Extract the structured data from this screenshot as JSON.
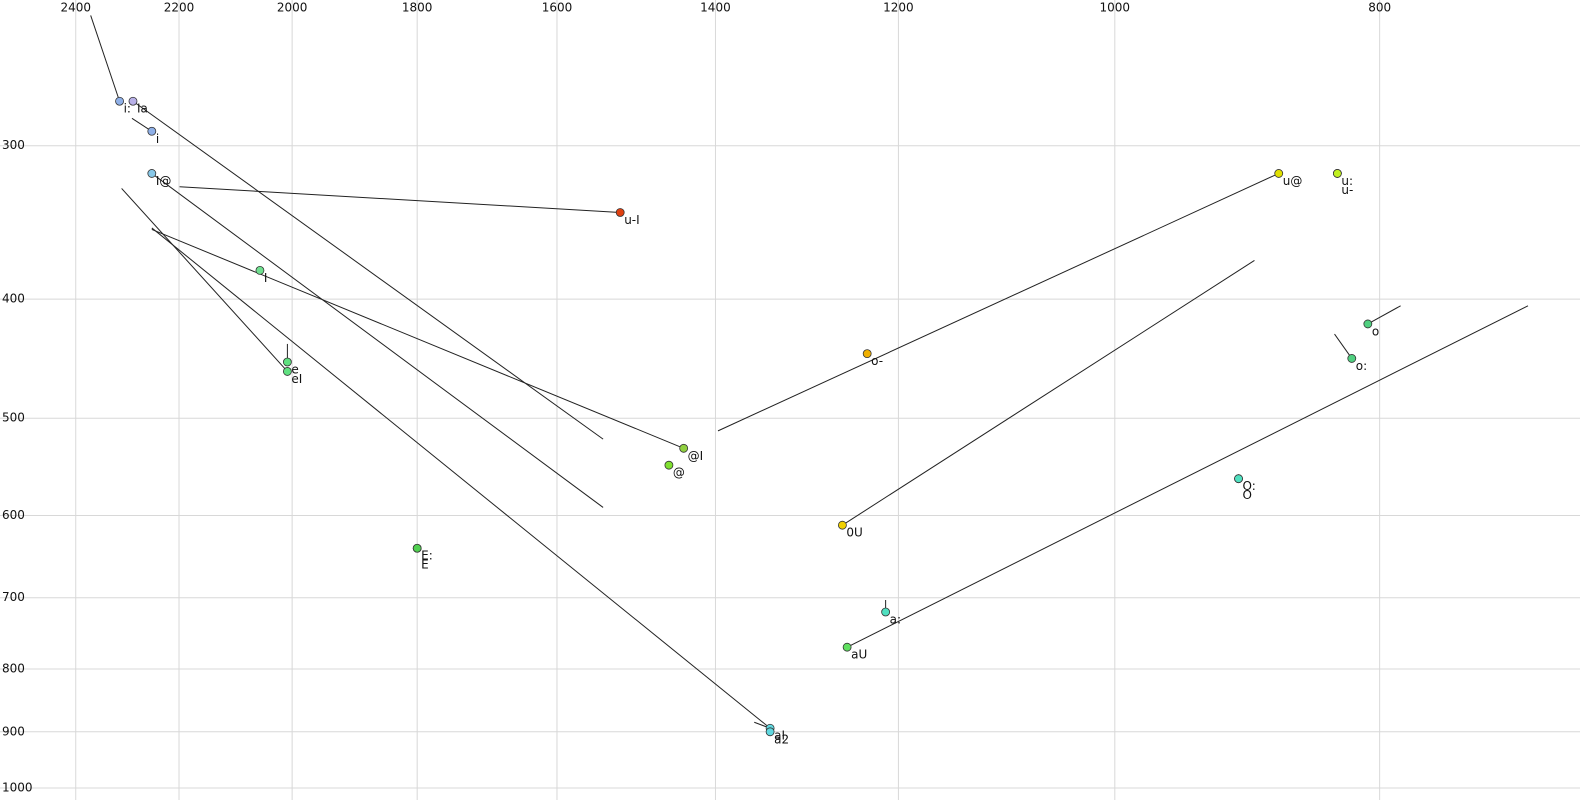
{
  "chart_data": {
    "type": "scatter",
    "log_x": true,
    "log_y": true,
    "x_reversed": true,
    "grid": true,
    "xlim": [
      2430,
      706
    ],
    "ylim": [
      247,
      1000
    ],
    "xticks": [
      2400,
      2200,
      2000,
      1800,
      1600,
      1400,
      1200,
      1000,
      800
    ],
    "yticks": [
      300,
      400,
      500,
      600,
      700,
      800,
      900,
      1000
    ],
    "points": [
      {
        "label": "i:",
        "color": "#8fb0e8",
        "x": 2313,
        "y": 276
      },
      {
        "label": "Ia",
        "color": "#b8b0e8",
        "x": 2287,
        "y": 276
      },
      {
        "label": "i",
        "color": "#8fb0e8",
        "x": 2251,
        "y": 292
      },
      {
        "label": "I@",
        "color": "#88c8e8",
        "x": 2251,
        "y": 316
      },
      {
        "label": "I",
        "color": "#70e090",
        "x": 2055,
        "y": 379
      },
      {
        "label": "e",
        "color": "#60e080",
        "x": 2008,
        "y": 450
      },
      {
        "label": "eI",
        "color": "#60e080",
        "x": 2008,
        "y": 458
      },
      {
        "label": "E:",
        "color": "#50d050",
        "x": 1800,
        "y": 638
      },
      {
        "label": "E",
        "color": "#50d050",
        "x": 1800,
        "y": 638
      },
      {
        "label": "u-I",
        "color": "#e04010",
        "x": 1517,
        "y": 340
      },
      {
        "label": "@I",
        "color": "#90d040",
        "x": 1438,
        "y": 529
      },
      {
        "label": "@",
        "color": "#80e030",
        "x": 1456,
        "y": 546
      },
      {
        "label": "o-",
        "color": "#f0b000",
        "x": 1232,
        "y": 443
      },
      {
        "label": "0U",
        "color": "#f0d000",
        "x": 1258,
        "y": 611
      },
      {
        "label": "aU",
        "color": "#60e060",
        "x": 1253,
        "y": 768
      },
      {
        "label": "a:",
        "color": "#50e0c0",
        "x": 1213,
        "y": 719
      },
      {
        "label": "aI",
        "color": "#60d8e0",
        "x": 1337,
        "y": 894
      },
      {
        "label": "a2",
        "color": "#60d8e0",
        "x": 1337,
        "y": 900
      },
      {
        "label": "u@",
        "color": "#e0e000",
        "x": 871,
        "y": 316
      },
      {
        "label": "u:",
        "color": "#c0f020",
        "x": 829,
        "y": 316
      },
      {
        "label": "u-",
        "color": "#c0f020",
        "x": 829,
        "y": 316
      },
      {
        "label": "o",
        "color": "#50d080",
        "x": 808,
        "y": 419
      },
      {
        "label": "o:",
        "color": "#50d080",
        "x": 819,
        "y": 447
      },
      {
        "label": "O:",
        "color": "#50e0c0",
        "x": 901,
        "y": 560
      },
      {
        "label": "O",
        "color": "#50e0c0",
        "x": 901,
        "y": 560
      }
    ],
    "lines": [
      {
        "x": [
          2370,
          2313
        ],
        "y": [
          235,
          276
        ]
      },
      {
        "x": [
          2287,
          1539
        ],
        "y": [
          276,
          520
        ]
      },
      {
        "x": [
          2251,
          2289
        ],
        "y": [
          292,
          285
        ]
      },
      {
        "x": [
          2251,
          1539
        ],
        "y": [
          316,
          591
        ]
      },
      {
        "x": [
          2199,
          1517
        ],
        "y": [
          324,
          340
        ]
      },
      {
        "x": [
          2251,
          1438
        ],
        "y": [
          351,
          529
        ]
      },
      {
        "x": [
          2008,
          2008
        ],
        "y": [
          450,
          435
        ]
      },
      {
        "x": [
          2008,
          2309
        ],
        "y": [
          458,
          325
        ]
      },
      {
        "x": [
          2251,
          1337
        ],
        "y": [
          350,
          894
        ]
      },
      {
        "x": [
          1355,
          1337
        ],
        "y": [
          884,
          894
        ]
      },
      {
        "x": [
          871,
          1397
        ],
        "y": [
          316,
          512
        ]
      },
      {
        "x": [
          1258,
          889
        ],
        "y": [
          611,
          372
        ]
      },
      {
        "x": [
          1253,
          706
        ],
        "y": [
          768,
          405
        ]
      },
      {
        "x": [
          1213,
          1213
        ],
        "y": [
          719,
          703
        ]
      },
      {
        "x": [
          808,
          786
        ],
        "y": [
          419,
          405
        ]
      },
      {
        "x": [
          819,
          831
        ],
        "y": [
          447,
          427
        ]
      }
    ]
  }
}
